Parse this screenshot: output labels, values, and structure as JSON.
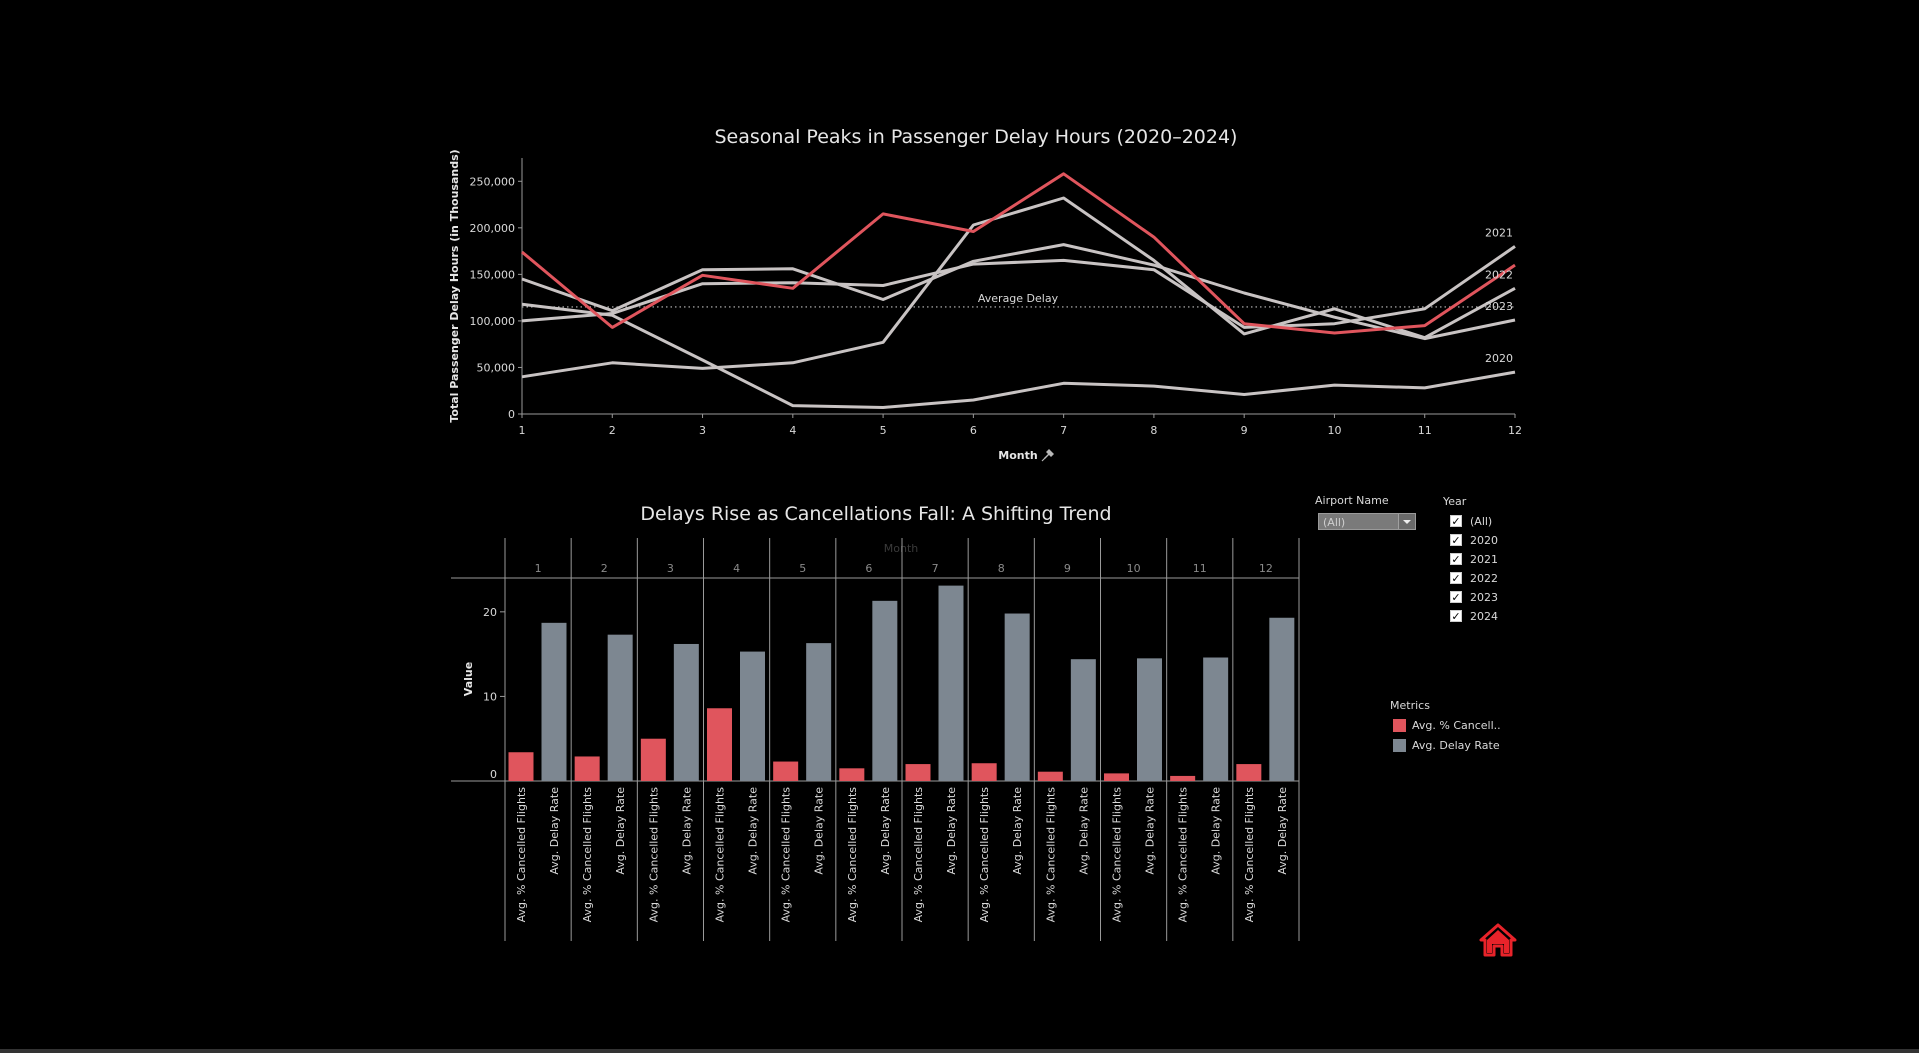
{
  "line_chart_title": "Seasonal Peaks in Passenger Delay Hours (2020–2024)",
  "bar_chart_title": "Delays Rise as Cancellations Fall: A Shifting Trend",
  "filters": {
    "airport_label": "Airport Name",
    "airport_value": "(All)",
    "year_label": "Year",
    "years": [
      {
        "label": "(All)",
        "checked": true
      },
      {
        "label": "2020",
        "checked": true
      },
      {
        "label": "2021",
        "checked": true
      },
      {
        "label": "2022",
        "checked": true
      },
      {
        "label": "2023",
        "checked": true
      },
      {
        "label": "2024",
        "checked": true
      }
    ]
  },
  "legend": {
    "title": "Metrics",
    "items": [
      {
        "label": "Avg. % Cancell..",
        "color": "#e0555d"
      },
      {
        "label": "Avg. Delay Rate",
        "color": "#7d8791"
      }
    ]
  },
  "icons": {
    "home": "home-icon",
    "pin": "pin-icon",
    "dropdown": "chevron-down-icon"
  },
  "chart_data": [
    {
      "type": "line",
      "title": "Seasonal Peaks in Passenger Delay Hours (2020–2024)",
      "xlabel": "Month",
      "ylabel": "Total Passenger Delay Hours (in Thousands)",
      "x": [
        1,
        2,
        3,
        4,
        5,
        6,
        7,
        8,
        9,
        10,
        11,
        12
      ],
      "xlim": [
        1,
        12
      ],
      "ylim": [
        0,
        275000
      ],
      "yticks": [
        0,
        50000,
        100000,
        150000,
        200000,
        250000
      ],
      "ytick_labels": [
        "0",
        "50,000",
        "100,000",
        "150,000",
        "200,000",
        "250,000"
      ],
      "grid": false,
      "reference_line": {
        "label": "Average Delay",
        "value": 115000
      },
      "series": [
        {
          "name": "2020",
          "color": "#c8c3c3",
          "values": [
            118000,
            106000,
            58000,
            9000,
            7000,
            15000,
            33000,
            30000,
            21000,
            31000,
            28000,
            45000
          ]
        },
        {
          "name": "2021",
          "color": "#c8c3c3",
          "values": [
            100000,
            108000,
            140000,
            141000,
            138000,
            161000,
            165000,
            155000,
            93000,
            97000,
            113000,
            180000
          ]
        },
        {
          "name": "2022",
          "color": "#c8c3c3",
          "values": [
            40000,
            55000,
            49000,
            55000,
            77000,
            203000,
            232000,
            165000,
            86000,
            113000,
            82000,
            135000
          ]
        },
        {
          "name": "2023",
          "color": "#c8c3c3",
          "values": [
            145000,
            111000,
            155000,
            156000,
            123000,
            164000,
            182000,
            160000,
            130000,
            104000,
            81000,
            101000
          ]
        },
        {
          "name": "",
          "color": "#e0555d",
          "values": [
            174000,
            93000,
            149000,
            135000,
            215000,
            196000,
            258000,
            190000,
            97000,
            87000,
            95000,
            160000
          ]
        }
      ]
    },
    {
      "type": "bar",
      "title": "Delays Rise as Cancellations Fall: A Shifting Trend",
      "column_header": "Month",
      "ylabel": "Value",
      "categories": [
        "1",
        "2",
        "3",
        "4",
        "5",
        "6",
        "7",
        "8",
        "9",
        "10",
        "11",
        "12"
      ],
      "ylim": [
        0,
        24
      ],
      "yticks": [
        0,
        10,
        20
      ],
      "ytick_labels": [
        "0",
        "10",
        "20"
      ],
      "metric_labels": [
        "Avg. % Cancelled Flights",
        "Avg. Delay Rate"
      ],
      "series": [
        {
          "name": "Avg. % Cancelled Flights",
          "color": "#e0555d",
          "values": [
            3.4,
            2.9,
            5.0,
            8.6,
            2.3,
            1.5,
            2.0,
            2.1,
            1.1,
            0.9,
            0.6,
            2.0
          ]
        },
        {
          "name": "Avg. Delay Rate",
          "color": "#7d8791",
          "values": [
            18.7,
            17.3,
            16.2,
            15.3,
            16.3,
            21.3,
            23.1,
            19.8,
            14.4,
            14.5,
            14.6,
            19.3
          ]
        }
      ]
    }
  ]
}
